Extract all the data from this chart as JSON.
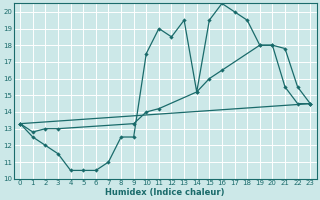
{
  "xlabel": "Humidex (Indice chaleur)",
  "xlim": [
    -0.5,
    23.5
  ],
  "ylim": [
    10,
    20.5
  ],
  "yticks": [
    10,
    11,
    12,
    13,
    14,
    15,
    16,
    17,
    18,
    19,
    20
  ],
  "xticks": [
    0,
    1,
    2,
    3,
    4,
    5,
    6,
    7,
    8,
    9,
    10,
    11,
    12,
    13,
    14,
    15,
    16,
    17,
    18,
    19,
    20,
    21,
    22,
    23
  ],
  "bg_color": "#cce8e8",
  "grid_color": "#ffffff",
  "line_color": "#1a6b6b",
  "line1_x": [
    0,
    1,
    2,
    3,
    4,
    5,
    6,
    7,
    8,
    9,
    10,
    11,
    12,
    13,
    14,
    15,
    16,
    17,
    18,
    19,
    20,
    21,
    22,
    23
  ],
  "line1_y": [
    13.3,
    12.5,
    12.0,
    11.5,
    10.5,
    10.5,
    10.5,
    11.0,
    12.5,
    12.5,
    17.5,
    19.0,
    18.5,
    19.5,
    15.2,
    19.5,
    20.5,
    20.0,
    19.5,
    18.0,
    18.0,
    15.5,
    14.5,
    14.5
  ],
  "line2_x": [
    0,
    1,
    2,
    3,
    9,
    10,
    11,
    14,
    15,
    16,
    19,
    20,
    21,
    22,
    23
  ],
  "line2_y": [
    13.3,
    12.8,
    13.0,
    13.0,
    13.3,
    14.0,
    14.2,
    15.2,
    16.0,
    16.5,
    18.0,
    18.0,
    17.8,
    15.5,
    14.5
  ],
  "line3_x": [
    0,
    23
  ],
  "line3_y": [
    13.3,
    14.5
  ]
}
